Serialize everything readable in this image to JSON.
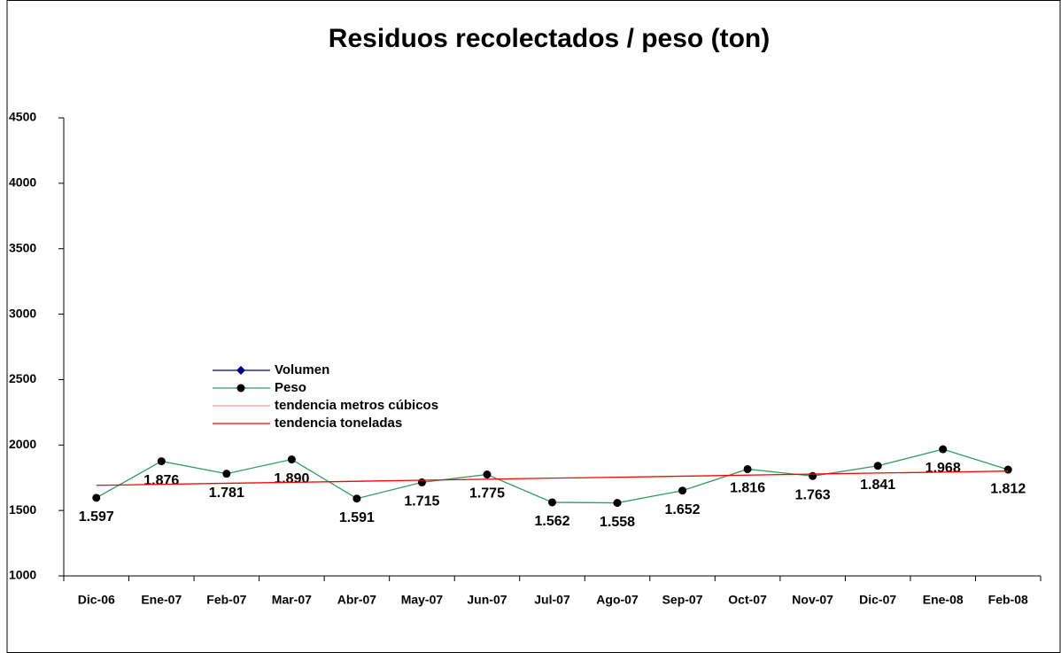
{
  "chart_data": {
    "type": "line",
    "title": "Residuos recolectados  / peso (ton)",
    "categories": [
      "Dic-06",
      "Ene-07",
      "Feb-07",
      "Mar-07",
      "Abr-07",
      "May-07",
      "Jun-07",
      "Jul-07",
      "Ago-07",
      "Sep-07",
      "Oct-07",
      "Nov-07",
      "Dic-07",
      "Ene-08",
      "Feb-08"
    ],
    "series": [
      {
        "name": "Volumen",
        "color": "#000080",
        "marker": "diamond",
        "values": [
          null,
          null,
          null,
          null,
          null,
          null,
          null,
          null,
          null,
          null,
          null,
          null,
          null,
          null,
          null
        ]
      },
      {
        "name": "Peso",
        "color": "#339966",
        "marker": "circle",
        "marker_color": "#000000",
        "values": [
          1597,
          1876,
          1781,
          1890,
          1591,
          1715,
          1775,
          1562,
          1558,
          1652,
          1816,
          1763,
          1841,
          1968,
          1812
        ],
        "value_labels": [
          "1.597",
          "1.876",
          "1.781",
          "1.890",
          "1.591",
          "1.715",
          "1.775",
          "1.562",
          "1.558",
          "1.652",
          "1.816",
          "1.763",
          "1.841",
          "1.968",
          "1.812"
        ]
      },
      {
        "name": "tendencia metros cúbicos",
        "color": "#ff9999",
        "values": [
          null,
          null,
          null,
          null,
          null,
          null,
          null,
          null,
          null,
          null,
          null,
          null,
          null,
          null,
          null
        ]
      },
      {
        "name": "tendencia toneladas",
        "color": "#ff0000",
        "values": [
          1692,
          1700,
          1708,
          1715,
          1723,
          1731,
          1739,
          1747,
          1754,
          1762,
          1770,
          1778,
          1786,
          1793,
          1801
        ]
      }
    ],
    "ylim": [
      1000,
      4500
    ],
    "yticks": [
      1000,
      1500,
      2000,
      2500,
      3000,
      3500,
      4000,
      4500
    ],
    "grid": false
  }
}
